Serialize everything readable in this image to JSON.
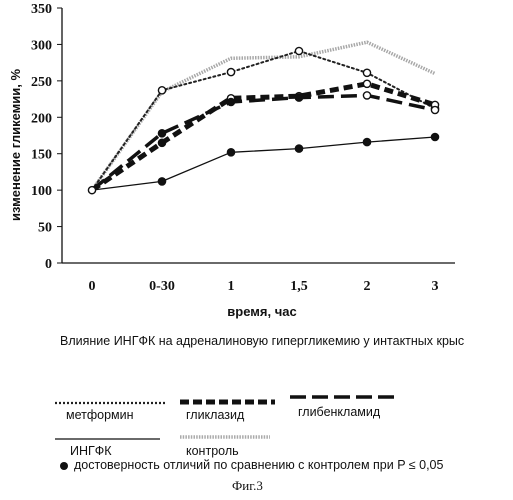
{
  "chart_data": {
    "type": "line",
    "title": "Влияние ИНГФК на адреналиновую гипергликемию у интактных крыс",
    "xlabel": "время, час",
    "ylabel": "изменение гликемии, %",
    "categories": [
      "0",
      "0-30",
      "1",
      "1,5",
      "2",
      "3"
    ],
    "ylim": [
      0,
      350
    ],
    "yticks": [
      0,
      50,
      100,
      150,
      200,
      250,
      300,
      350
    ],
    "series": [
      {
        "name": "метформин",
        "values": [
          100,
          237,
          262,
          291,
          261,
          212
        ],
        "style": "dotted",
        "color": "#222222",
        "markers": [
          null,
          "open",
          "open",
          "open",
          "open",
          "open"
        ]
      },
      {
        "name": "гликлазид",
        "values": [
          100,
          165,
          226,
          229,
          246,
          217
        ],
        "style": "thick-short-dash",
        "color": "#111111",
        "markers": [
          null,
          "filled",
          "open",
          "open",
          "open",
          "open"
        ]
      },
      {
        "name": "глибенкламид",
        "values": [
          100,
          178,
          221,
          227,
          230,
          210
        ],
        "style": "long-dash",
        "color": "#111111",
        "markers": [
          null,
          "filled",
          "filled",
          "filled",
          "open",
          "open"
        ]
      },
      {
        "name": "ИНГФК",
        "values": [
          100,
          112,
          152,
          157,
          166,
          173
        ],
        "style": "solid",
        "color": "#111111",
        "markers": [
          null,
          "filled",
          "filled",
          "filled",
          "filled",
          "filled"
        ]
      },
      {
        "name": "контроль",
        "values": [
          100,
          235,
          281,
          283,
          303,
          260
        ],
        "style": "gray-hatched",
        "color": "#a8a8a8",
        "markers": [
          null,
          null,
          null,
          null,
          null,
          null
        ]
      }
    ],
    "grid": false,
    "legend_position": "bottom"
  },
  "caption": "Влияние ИНГФК на адреналиновую гипергликемию у интактных крыс",
  "note": "достоверность отличий по сравнению с контролем при P ≤ 0,05",
  "figure_label": "Фиг.3"
}
